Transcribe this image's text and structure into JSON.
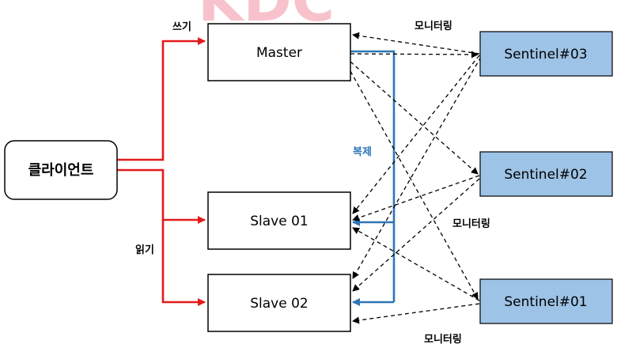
{
  "watermark": "KDC",
  "client": {
    "label": "클라이언트"
  },
  "master": {
    "label": "Master"
  },
  "slaves": [
    {
      "label": "Slave 01"
    },
    {
      "label": "Slave 02"
    }
  ],
  "sentinels": [
    {
      "label": "Sentinel#03"
    },
    {
      "label": "Sentinel#02"
    },
    {
      "label": "Sentinel#01"
    }
  ],
  "edge_labels": {
    "write": "쓰기",
    "read": "읽기",
    "replication": "복제",
    "monitoring": [
      "모니터링",
      "모니터링",
      "모니터링"
    ]
  },
  "colors": {
    "client_path": "#e31a1c",
    "replication": "#2e75b6",
    "sentinel_fill": "#9dc3e6",
    "watermark": "#f7c2cc"
  }
}
